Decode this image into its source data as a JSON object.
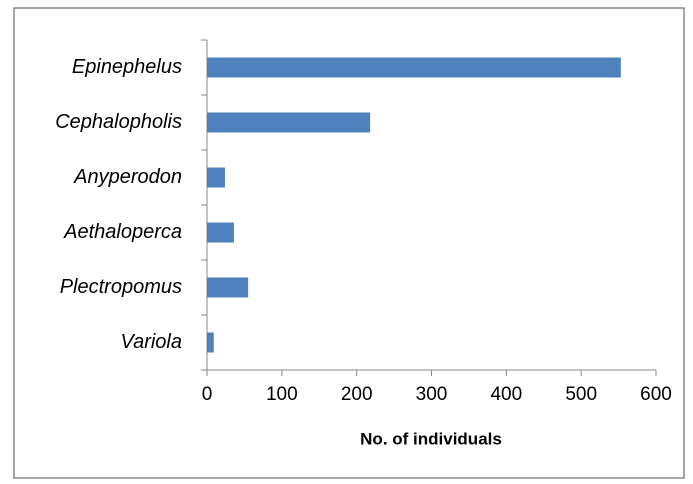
{
  "chart_data": {
    "type": "bar",
    "orientation": "horizontal",
    "categories": [
      "Epinephelus",
      "Cephalopholis",
      "Anyperodon",
      "Aethaloperca",
      "Plectropomus",
      "Variola"
    ],
    "values": [
      553,
      218,
      24,
      36,
      55,
      9
    ],
    "color": "#4f81bd",
    "xlim": [
      0,
      600
    ],
    "xticks": [
      0,
      100,
      200,
      300,
      400,
      500,
      600
    ],
    "x_label": "No. of individuals",
    "grid": false
  }
}
